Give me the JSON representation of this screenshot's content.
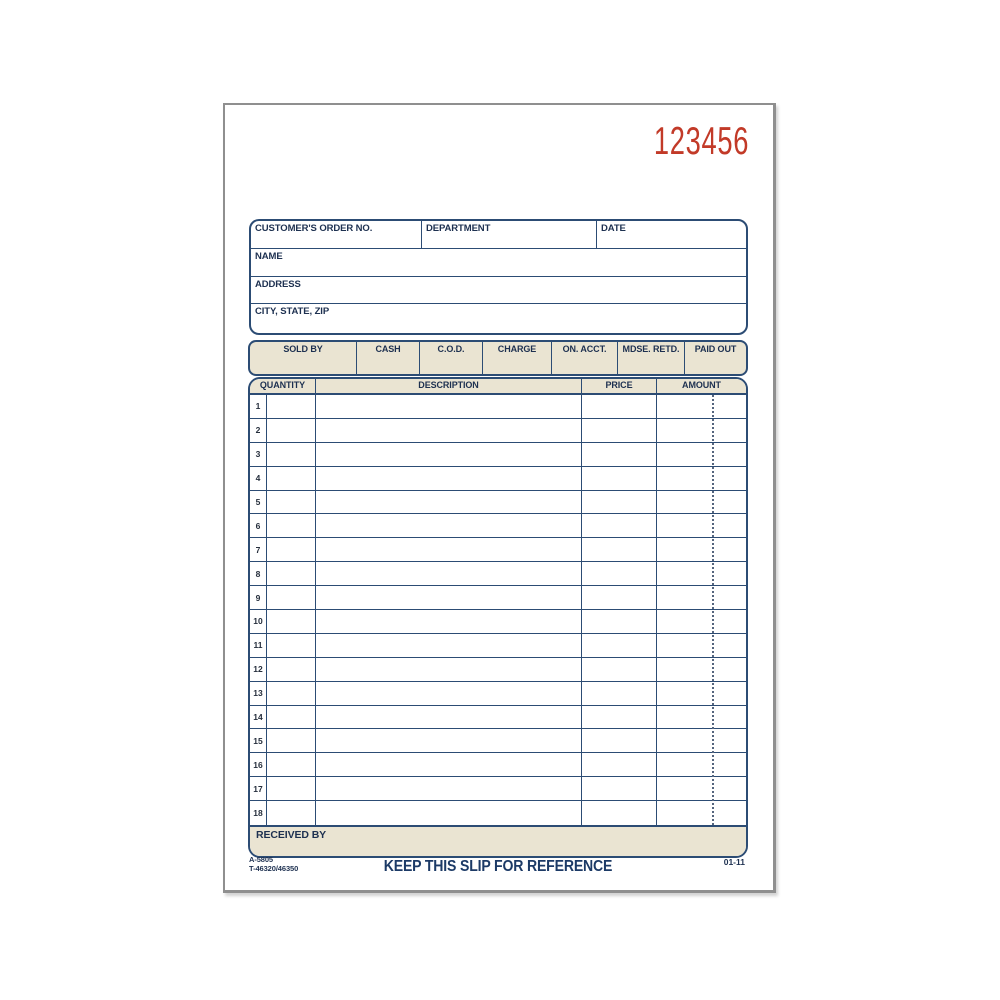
{
  "colors": {
    "navy": "#2c4c74",
    "ink": "#1d3050",
    "ink2": "#1c3a66",
    "tan": "#eae4d2",
    "red": "#c23a28",
    "paper_border": "#8f8f8f"
  },
  "serial_number": "123456",
  "order_header": {
    "customer_order_no_label": "CUSTOMER'S ORDER NO.",
    "department_label": "DEPARTMENT",
    "date_label": "DATE",
    "name_label": "NAME",
    "address_label": "ADDRESS",
    "city_state_zip_label": "CITY, STATE, ZIP"
  },
  "payment_row": {
    "labels": [
      "SOLD BY",
      "CASH",
      "C.O.D.",
      "CHARGE",
      "ON. ACCT.",
      "MDSE. RETD.",
      "PAID OUT"
    ]
  },
  "items_table": {
    "headers": [
      "QUANTITY",
      "DESCRIPTION",
      "PRICE",
      "AMOUNT"
    ],
    "row_numbers": [
      "1",
      "2",
      "3",
      "4",
      "5",
      "6",
      "7",
      "8",
      "9",
      "10",
      "11",
      "12",
      "13",
      "14",
      "15",
      "16",
      "17",
      "18"
    ],
    "received_by_label": "RECEIVED BY"
  },
  "footer": {
    "form_code": "A-5805",
    "reorder_code": "T-46320/46350",
    "notice": "KEEP THIS SLIP FOR REFERENCE",
    "revision_code": "01-11"
  }
}
